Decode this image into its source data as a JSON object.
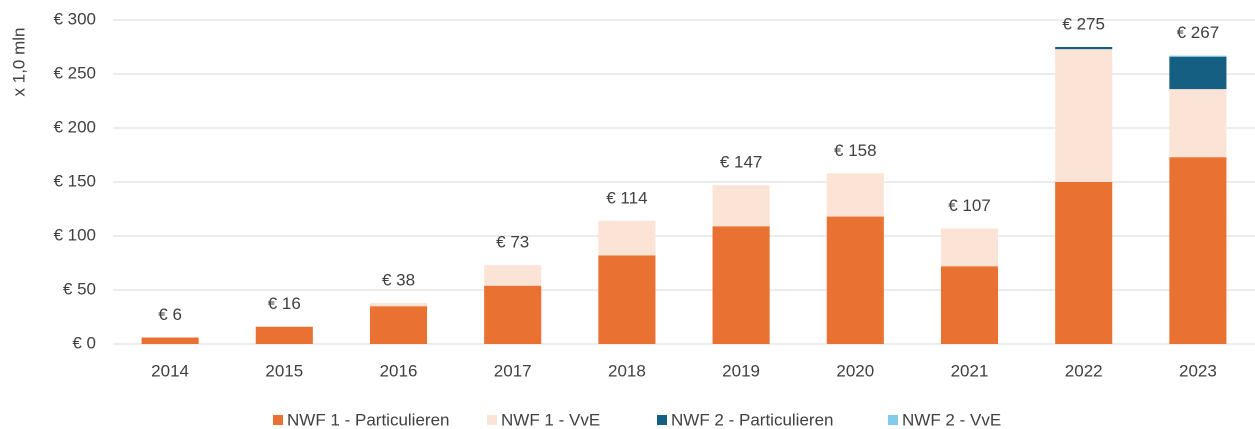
{
  "chart_data": {
    "type": "stacked_bar",
    "y_axis_label": "x 1,0 mln",
    "categories": [
      "2014",
      "2015",
      "2016",
      "2017",
      "2018",
      "2019",
      "2020",
      "2021",
      "2022",
      "2023"
    ],
    "series": [
      {
        "name": "NWF 1 - Particulieren",
        "color": "#E97132",
        "values": [
          6,
          16,
          35,
          54,
          82,
          109,
          118,
          72,
          150,
          173
        ]
      },
      {
        "name": "NWF 1 - VvE",
        "color": "#FBE3D6",
        "values": [
          0,
          0,
          3,
          19,
          32,
          38,
          40,
          35,
          123,
          63
        ]
      },
      {
        "name": "NWF 2 - Particulieren",
        "color": "#156082",
        "values": [
          0,
          0,
          0,
          0,
          0,
          0,
          0,
          0,
          2,
          30
        ]
      },
      {
        "name": "NWF 2 - VvE",
        "color": "#83CBEB",
        "values": [
          0,
          0,
          0,
          0,
          0,
          0,
          0,
          0,
          0,
          1
        ]
      }
    ],
    "totals": {
      "values": [
        6,
        16,
        38,
        73,
        114,
        147,
        158,
        107,
        275,
        267
      ],
      "value_labels": [
        "€ 6",
        "€ 16",
        "€ 38",
        "€ 73",
        "€ 114",
        "€ 147",
        "€ 158",
        "€ 107",
        "€ 275",
        "€ 267"
      ]
    },
    "ylim": [
      0,
      300
    ],
    "yticks": [
      {
        "value": 0,
        "label": "€ 0"
      },
      {
        "value": 50,
        "label": "€ 50"
      },
      {
        "value": 100,
        "label": "€ 100"
      },
      {
        "value": 150,
        "label": "€ 150"
      },
      {
        "value": 200,
        "label": "€ 200"
      },
      {
        "value": 250,
        "label": "€ 250"
      },
      {
        "value": 300,
        "label": "€ 300"
      }
    ],
    "grid": true,
    "legend": "bottom"
  }
}
